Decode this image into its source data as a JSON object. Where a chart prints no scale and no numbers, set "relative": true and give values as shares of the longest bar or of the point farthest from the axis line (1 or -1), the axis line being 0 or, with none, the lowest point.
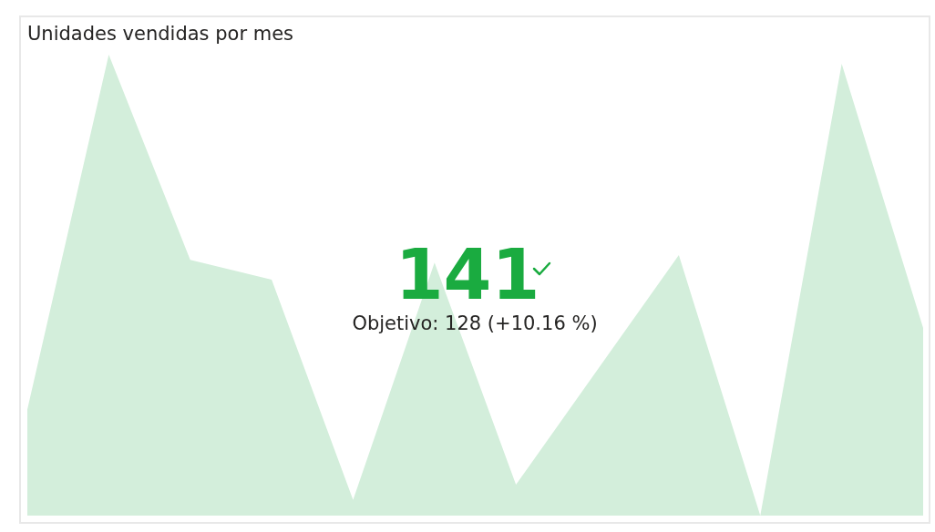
{
  "chart_data": {
    "type": "area",
    "title": "Unidades vendidas por mes",
    "relative": true,
    "categories": [
      null,
      null,
      null,
      null,
      null,
      null,
      null,
      null,
      null,
      null,
      null,
      null
    ],
    "series": [
      {
        "color": "#d3eedb",
        "values": [
          0.23,
          1,
          0.555,
          0.512,
          0.034,
          0.549,
          0.067,
          0.316,
          0.565,
          0,
          0.98,
          0.407
        ]
      }
    ],
    "annotations": [
      "141",
      "Objetivo: 128 (+10.16 %)"
    ]
  }
}
